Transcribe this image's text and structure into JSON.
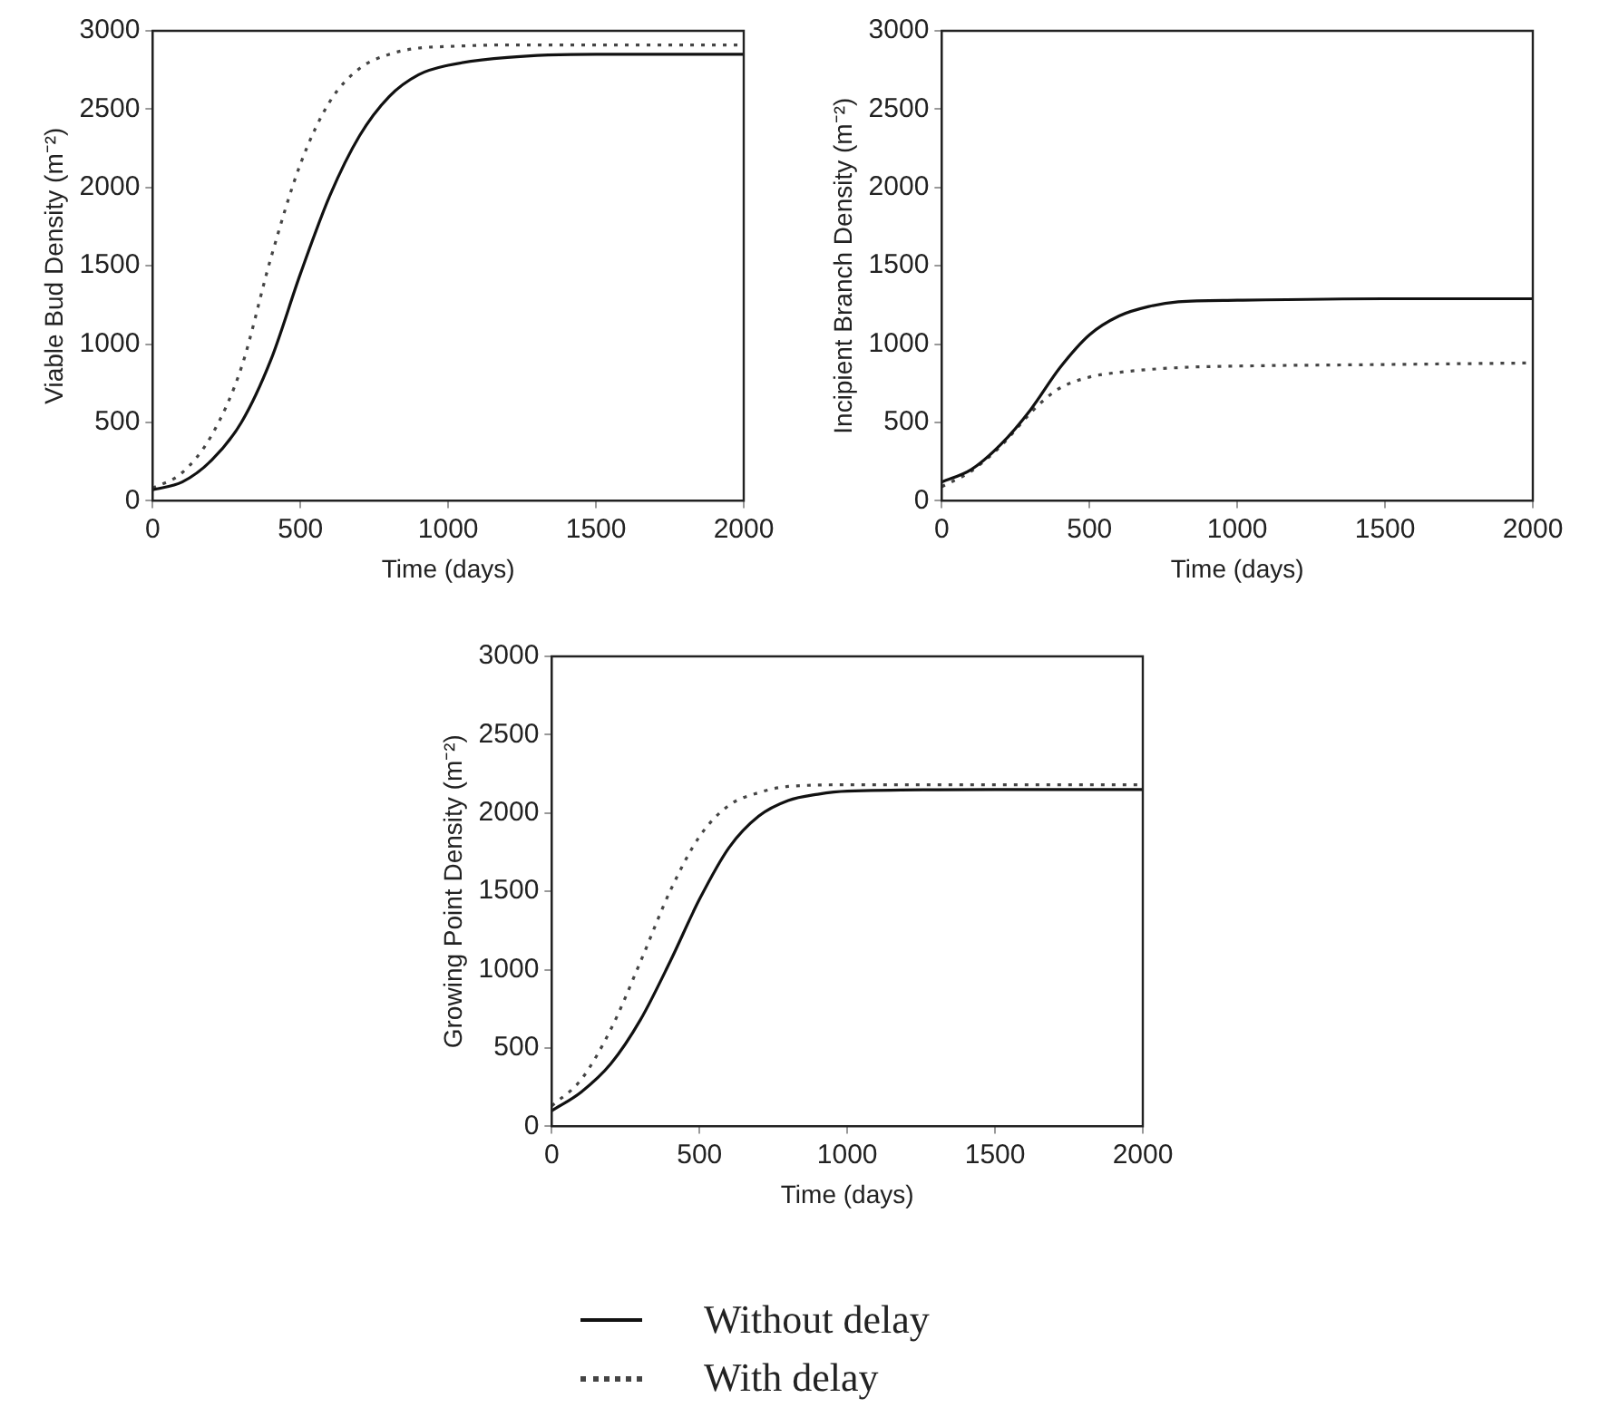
{
  "chart_data": [
    {
      "type": "line",
      "xlabel": "Time (days)",
      "ylabel": "Viable Bud Density (m⁻²)",
      "xlim": [
        0,
        2000
      ],
      "xticks": [
        0,
        500,
        1000,
        1500,
        2000
      ],
      "ylim": [
        0,
        3000
      ],
      "yticks": [
        0,
        500,
        1000,
        1500,
        2000,
        2500,
        3000
      ],
      "grid": false,
      "marker": "none",
      "legend": "bottom",
      "series": [
        {
          "name": "Without delay",
          "color": "#111111",
          "line_style": "solid",
          "x": [
            0,
            100,
            200,
            300,
            400,
            500,
            600,
            700,
            800,
            900,
            1000,
            1200,
            1500,
            2000
          ],
          "values": [
            70,
            120,
            260,
            500,
            900,
            1450,
            1950,
            2330,
            2580,
            2720,
            2780,
            2830,
            2850,
            2850
          ]
        },
        {
          "name": "With delay",
          "color": "#444444",
          "line_style": "dotted",
          "x": [
            0,
            100,
            200,
            300,
            400,
            500,
            600,
            700,
            800,
            900,
            1000,
            1200,
            1500,
            2000
          ],
          "values": [
            80,
            180,
            420,
            850,
            1550,
            2150,
            2550,
            2760,
            2850,
            2890,
            2900,
            2910,
            2910,
            2910
          ]
        }
      ]
    },
    {
      "type": "line",
      "xlabel": "Time (days)",
      "ylabel": "Incipient Branch Density (m⁻²)",
      "xlim": [
        0,
        2000
      ],
      "xticks": [
        0,
        500,
        1000,
        1500,
        2000
      ],
      "ylim": [
        0,
        3000
      ],
      "yticks": [
        0,
        500,
        1000,
        1500,
        2000,
        2500,
        3000
      ],
      "grid": false,
      "marker": "none",
      "series": [
        {
          "color": "#111111",
          "line_style": "solid",
          "x": [
            0,
            100,
            200,
            300,
            400,
            500,
            600,
            700,
            800,
            1000,
            1500,
            2000
          ],
          "values": [
            120,
            200,
            360,
            580,
            850,
            1060,
            1180,
            1240,
            1270,
            1280,
            1290,
            1290
          ]
        },
        {
          "color": "#444444",
          "line_style": "dotted",
          "x": [
            0,
            100,
            200,
            300,
            350,
            400,
            500,
            600,
            800,
            1000,
            1500,
            2000
          ],
          "values": [
            90,
            190,
            350,
            560,
            650,
            720,
            790,
            820,
            850,
            860,
            870,
            880
          ]
        }
      ]
    },
    {
      "type": "line",
      "xlabel": "Time (days)",
      "ylabel": "Growing Point Density (m⁻²)",
      "xlim": [
        0,
        2000
      ],
      "xticks": [
        0,
        500,
        1000,
        1500,
        2000
      ],
      "ylim": [
        0,
        3000
      ],
      "yticks": [
        0,
        500,
        1000,
        1500,
        2000,
        2500,
        3000
      ],
      "grid": false,
      "marker": "none",
      "series": [
        {
          "color": "#111111",
          "line_style": "solid",
          "x": [
            0,
            100,
            200,
            300,
            400,
            500,
            600,
            700,
            800,
            900,
            1000,
            1500,
            2000
          ],
          "values": [
            100,
            220,
            400,
            680,
            1050,
            1450,
            1780,
            1980,
            2080,
            2120,
            2140,
            2150,
            2150
          ]
        },
        {
          "color": "#444444",
          "line_style": "dotted",
          "x": [
            0,
            100,
            200,
            300,
            400,
            500,
            600,
            700,
            800,
            1000,
            1500,
            2000
          ],
          "values": [
            130,
            300,
            620,
            1050,
            1500,
            1850,
            2050,
            2130,
            2170,
            2180,
            2180,
            2180
          ]
        }
      ]
    }
  ]
}
